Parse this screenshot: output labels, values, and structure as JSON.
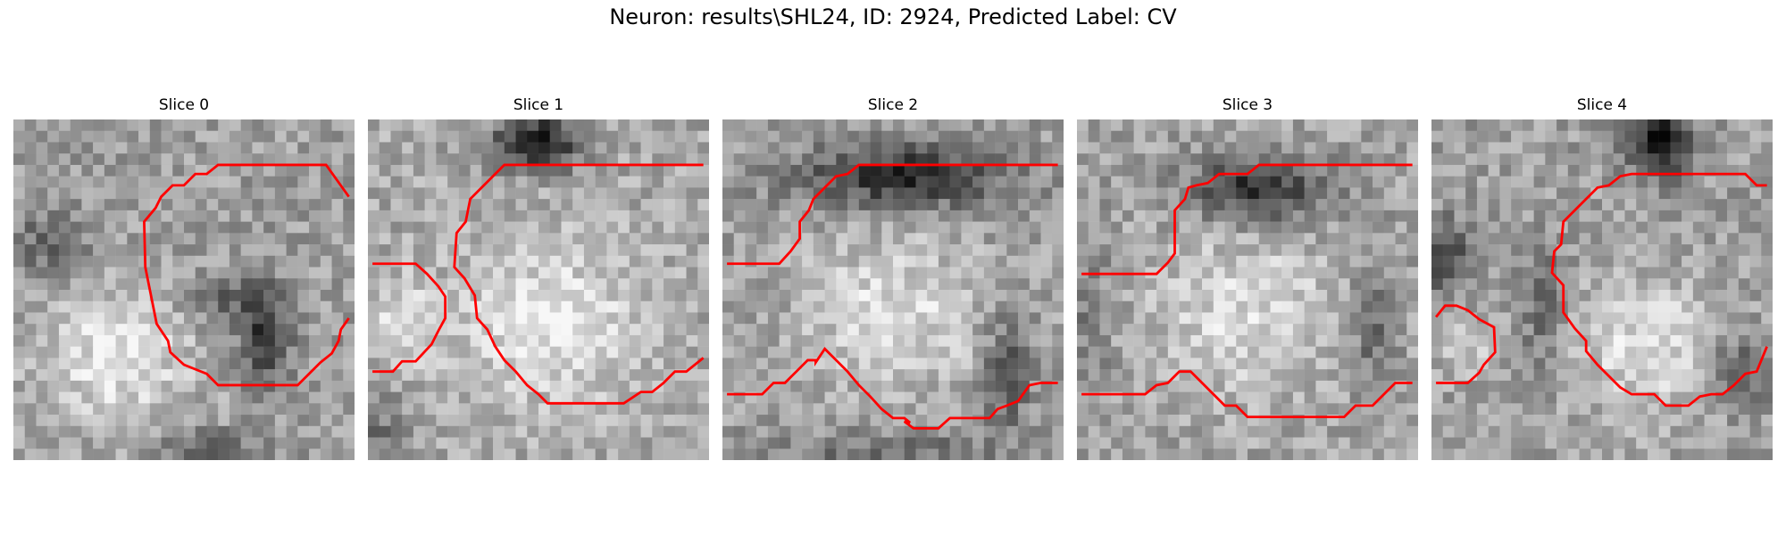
{
  "figure": {
    "title": "Neuron: results\\SHL24, ID: 2924, Predicted Label: CV",
    "contour_color": "#ff0000",
    "panels": [
      {
        "title": "Slice 0",
        "pattern": "ring_right"
      },
      {
        "title": "Slice 1",
        "pattern": "dark_top"
      },
      {
        "title": "Slice 2",
        "pattern": "dark_top_wide"
      },
      {
        "title": "Slice 3",
        "pattern": "dark_top_center"
      },
      {
        "title": "Slice 4",
        "pattern": "dark_top_right"
      }
    ]
  }
}
